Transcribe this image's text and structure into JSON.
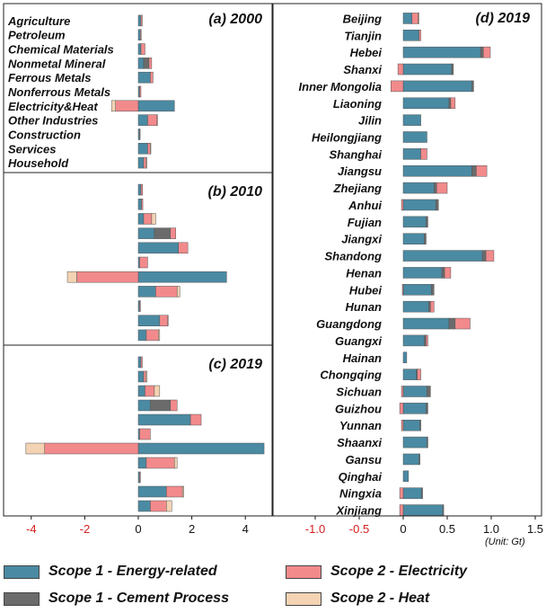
{
  "colors": {
    "energy": "#4a8aa3",
    "cement": "#6b6b6b",
    "electricity": "#f28a8c",
    "heat": "#f3d3b3"
  },
  "legend": [
    {
      "key": "energy",
      "label": "Scope 1 - Energy-related"
    },
    {
      "key": "electricity",
      "label": "Scope 2  - Electricity"
    },
    {
      "key": "cement",
      "label": "Scope 1 - Cement Process"
    },
    {
      "key": "heat",
      "label": "Scope 2  - Heat"
    }
  ],
  "unit_label": "(Unit: Gt)",
  "chart_data": [
    {
      "type": "bar",
      "orientation": "horizontal",
      "stacked": true,
      "title": "(a) 2000",
      "categories": [
        "Agriculture",
        "Petroleum",
        "Chemical Materials",
        "Nonmetal Mineral",
        "Ferrous Metals",
        "Nonferrous Metals",
        "Electricity&Heat",
        "Other Industries",
        "Construction",
        "Services",
        "Household"
      ],
      "series": [
        {
          "name": "Scope 1 - Energy-related",
          "values": [
            0.1,
            0.08,
            0.1,
            0.2,
            0.45,
            0.05,
            1.35,
            0.35,
            0.05,
            0.35,
            0.2
          ]
        },
        {
          "name": "Scope 1 - Cement Process",
          "values": [
            0,
            0,
            0,
            0.2,
            0,
            0,
            0,
            0,
            0,
            0,
            0
          ]
        },
        {
          "name": "Scope 2 - Electricity",
          "values": [
            0.05,
            0.03,
            0.15,
            0.1,
            0.1,
            0.05,
            -0.85,
            0.35,
            0.02,
            0.1,
            0.1
          ]
        },
        {
          "name": "Scope 2 - Heat",
          "values": [
            0,
            0,
            0,
            0,
            0,
            0,
            -0.15,
            0.02,
            0,
            0.02,
            0.02
          ]
        }
      ],
      "xlim": [
        -5,
        5
      ],
      "xticks": [
        -4,
        -2,
        0,
        2,
        4
      ]
    },
    {
      "type": "bar",
      "orientation": "horizontal",
      "stacked": true,
      "title": "(b) 2010",
      "categories": [
        "Agriculture",
        "Petroleum",
        "Chemical Materials",
        "Nonmetal Mineral",
        "Ferrous Metals",
        "Nonferrous Metals",
        "Electricity&Heat",
        "Other Industries",
        "Construction",
        "Services",
        "Household"
      ],
      "series": [
        {
          "name": "Scope 1 - Energy-related",
          "values": [
            0.1,
            0.12,
            0.2,
            0.6,
            1.5,
            0.05,
            3.3,
            0.65,
            0.05,
            0.8,
            0.3
          ]
        },
        {
          "name": "Scope 1 - Cement Process",
          "values": [
            0,
            0,
            0,
            0.6,
            0,
            0,
            0,
            0,
            0,
            0,
            0
          ]
        },
        {
          "name": "Scope 2 - Electricity",
          "values": [
            0.06,
            0.05,
            0.3,
            0.2,
            0.35,
            0.3,
            -2.3,
            0.8,
            0.03,
            0.3,
            0.45
          ]
        },
        {
          "name": "Scope 2 - Heat",
          "values": [
            0,
            0,
            0.15,
            0,
            0,
            0,
            -0.35,
            0.1,
            0,
            0.02,
            0.05
          ]
        }
      ],
      "xlim": [
        -5,
        5
      ],
      "xticks": [
        -4,
        -2,
        0,
        2,
        4
      ]
    },
    {
      "type": "bar",
      "orientation": "horizontal",
      "stacked": true,
      "title": "(c) 2019",
      "categories": [
        "Agriculture",
        "Petroleum",
        "Chemical Materials",
        "Nonmetal Mineral",
        "Ferrous Metals",
        "Nonferrous Metals",
        "Electricity&Heat",
        "Other Industries",
        "Construction",
        "Services",
        "Household"
      ],
      "series": [
        {
          "name": "Scope 1 - Energy-related",
          "values": [
            0.1,
            0.2,
            0.25,
            0.45,
            1.95,
            0.05,
            4.7,
            0.3,
            0.05,
            1.05,
            0.45
          ]
        },
        {
          "name": "Scope 1 - Cement Process",
          "values": [
            0,
            0,
            0,
            0.75,
            0,
            0,
            0,
            0,
            0,
            0,
            0
          ]
        },
        {
          "name": "Scope 2 - Electricity",
          "values": [
            0.05,
            0.08,
            0.35,
            0.25,
            0.4,
            0.4,
            -3.5,
            1.05,
            0.03,
            0.6,
            0.6
          ]
        },
        {
          "name": "Scope 2 - Heat",
          "values": [
            0,
            0.05,
            0.2,
            0,
            0,
            0,
            -0.7,
            0.1,
            0,
            0.05,
            0.2
          ]
        }
      ],
      "xlim": [
        -5,
        5
      ],
      "xticks": [
        -4,
        -2,
        0,
        2,
        4
      ],
      "xlabel": ""
    },
    {
      "type": "bar",
      "orientation": "horizontal",
      "stacked": true,
      "title": "(d) 2019",
      "categories": [
        "Beijing",
        "Tianjin",
        "Hebei",
        "Shanxi",
        "Inner Mongolia",
        "Liaoning",
        "Jilin",
        "Heilongjiang",
        "Shanghai",
        "Jiangsu",
        "Zhejiang",
        "Anhui",
        "Fujian",
        "Jiangxi",
        "Shandong",
        "Henan",
        "Hubei",
        "Hunan",
        "Guangdong",
        "Guangxi",
        "Hainan",
        "Chongqing",
        "Sichuan",
        "Guizhou",
        "Yunnan",
        "Shaanxi",
        "Gansu",
        "Qinghai",
        "Ningxia",
        "Xinjiang"
      ],
      "series": [
        {
          "name": "Scope 1 - Energy-related",
          "values": [
            0.1,
            0.18,
            0.88,
            0.55,
            0.78,
            0.52,
            0.2,
            0.27,
            0.2,
            0.78,
            0.35,
            0.37,
            0.26,
            0.24,
            0.9,
            0.44,
            0.32,
            0.29,
            0.52,
            0.24,
            0.04,
            0.15,
            0.27,
            0.26,
            0.19,
            0.27,
            0.18,
            0.06,
            0.21,
            0.45
          ]
        },
        {
          "name": "Scope 1 - Cement Process",
          "values": [
            0,
            0,
            0.03,
            0.02,
            0.02,
            0.02,
            0,
            0,
            0,
            0.05,
            0.03,
            0.03,
            0.02,
            0.02,
            0.04,
            0.03,
            0.03,
            0.02,
            0.07,
            0.02,
            0,
            0.01,
            0.04,
            0.02,
            0.01,
            0.01,
            0.01,
            0,
            0.01,
            0.01
          ]
        },
        {
          "name": "Scope 2 - Electricity",
          "values": [
            0.07,
            0.02,
            0.08,
            -0.06,
            -0.14,
            0.05,
            0,
            0,
            0.07,
            0.12,
            0.12,
            -0.02,
            0,
            0,
            0.09,
            0.07,
            -0.01,
            0.04,
            0.17,
            0.02,
            0,
            0.04,
            -0.02,
            -0.04,
            -0.02,
            0,
            0,
            0,
            -0.04,
            -0.04
          ]
        },
        {
          "name": "Scope 2 - Heat",
          "values": [
            0.01,
            0,
            0,
            0,
            0,
            0,
            0,
            0,
            0,
            0,
            0,
            0,
            0,
            0,
            0,
            0,
            0,
            0,
            0,
            0,
            0,
            0,
            0,
            0,
            0,
            0,
            0,
            0,
            0,
            0
          ]
        }
      ],
      "xlim": [
        -1.05,
        1.5
      ],
      "xticks": [
        -1.0,
        -0.5,
        0,
        0.5,
        1.0,
        1.5
      ]
    }
  ]
}
